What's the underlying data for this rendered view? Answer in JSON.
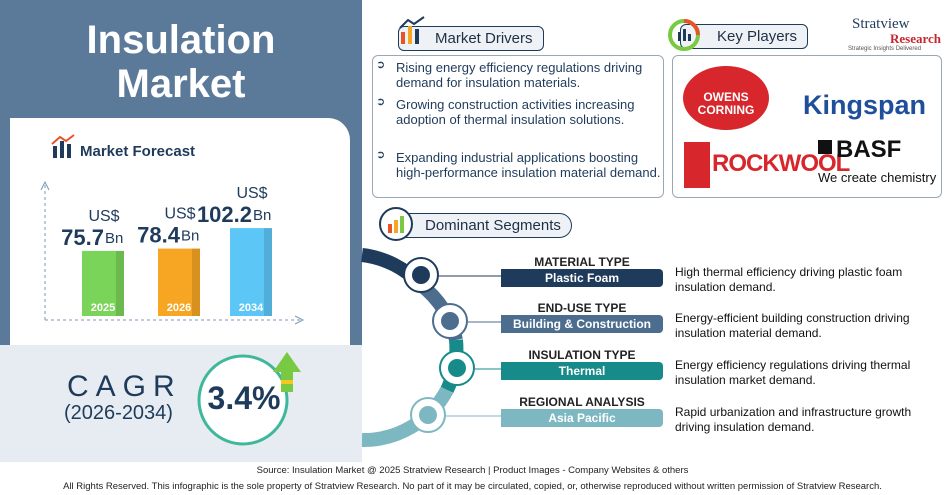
{
  "header": {
    "title_line1": "Insulation",
    "title_line2": "Market"
  },
  "forecast": {
    "title": "Market Forecast",
    "bars": [
      {
        "year": "2025",
        "prefix": "US$",
        "value": 75.7,
        "unit": "Bn",
        "color": "#7bd45a"
      },
      {
        "year": "2026",
        "prefix": "US$",
        "value": 78.4,
        "unit": "Bn",
        "color": "#f6a623"
      },
      {
        "year": "2034",
        "prefix": "US$",
        "value": 102.2,
        "unit": "Bn",
        "color": "#5cc6f7"
      }
    ]
  },
  "cagr": {
    "label": "CAGR",
    "period": "(2026-2034)",
    "value": "3.4%"
  },
  "drivers": {
    "title": "Market Drivers",
    "items": [
      "Rising energy efficiency regulations driving demand for insulation materials.",
      "Growing construction activities increasing adoption of thermal insulation solutions.",
      "Expanding industrial applications boosting high-performance insulation material demand."
    ]
  },
  "key_players": {
    "title": "Key Players",
    "logos": {
      "owens1": "OWENS",
      "owens2": "CORNING",
      "kingspan": "Kingspan",
      "rockwool": "ROCKWOOL",
      "basf": "BASF",
      "basf_tag": "We create chemistry"
    }
  },
  "brand": {
    "name": "Stratview",
    "sub": "Research",
    "tagline": "Strategic Insights Delivered"
  },
  "segments": {
    "title": "Dominant Segments",
    "items": [
      {
        "heading": "MATERIAL TYPE",
        "value": "Plastic Foam",
        "text": "High thermal efficiency driving plastic foam insulation demand.",
        "color": "#1f3b5b"
      },
      {
        "heading": "END-USE TYPE",
        "value": "Building & Construction",
        "text": "Energy-efficient building construction driving insulation material demand.",
        "color": "#4d6d8f"
      },
      {
        "heading": "INSULATION TYPE",
        "value": "Thermal",
        "text": "Energy efficiency regulations driving thermal insulation market demand.",
        "color": "#178a8a"
      },
      {
        "heading": "REGIONAL ANALYSIS",
        "value": "Asia Pacific",
        "text": "Rapid urbanization and infrastructure growth driving insulation demand.",
        "color": "#7db8c2"
      }
    ]
  },
  "footer": {
    "source": "Source:  Insulation Market @ 2025 Stratview Research | Product Images  - Company Websites & others",
    "rights": "All Rights Reserved. This infographic is the sole property of Stratview Research. No part of it may be circulated, copied, or, otherwise reproduced without written permission of Stratview Research."
  }
}
